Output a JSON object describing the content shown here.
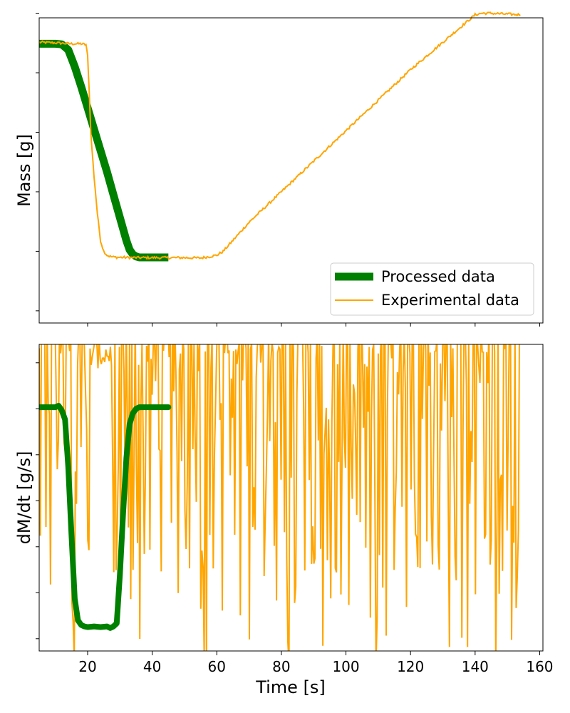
{
  "chart_data": [
    {
      "type": "line",
      "ylabel": "Mass [g]",
      "xlabel": "",
      "xlim": [
        5,
        161
      ],
      "ylim": [
        0,
        1
      ],
      "xticks": [
        20,
        40,
        60,
        80,
        100,
        120,
        140,
        160
      ],
      "yticks_minor": [
        0.04,
        0.235,
        0.43,
        0.625,
        0.82,
        1.015
      ],
      "y_tick_labels": "hidden",
      "x_tick_labels": "hidden",
      "legend": {
        "placement": "bottom-right"
      },
      "series": [
        {
          "name": "Processed data",
          "color": "#008000",
          "linewidth": "thick",
          "x": [
            5,
            10,
            12,
            14,
            16,
            18,
            20,
            22,
            24,
            26,
            28,
            30,
            32,
            33,
            34,
            35,
            36,
            40,
            45
          ],
          "y": [
            0.915,
            0.915,
            0.913,
            0.895,
            0.84,
            0.775,
            0.705,
            0.635,
            0.565,
            0.495,
            0.42,
            0.345,
            0.27,
            0.24,
            0.225,
            0.218,
            0.215,
            0.215,
            0.215
          ]
        },
        {
          "name": "Experimental data",
          "color": "#ffa500",
          "linewidth": "thin",
          "x": [
            5,
            10,
            15,
            18,
            19.5,
            20,
            20.5,
            21,
            22,
            23,
            24,
            25,
            26,
            27,
            28,
            30,
            35,
            40,
            45,
            50,
            55,
            58,
            60,
            62,
            70,
            80,
            90,
            100,
            110,
            120,
            130,
            140,
            142,
            145,
            150,
            154
          ],
          "y": [
            0.92,
            0.918,
            0.915,
            0.915,
            0.912,
            0.875,
            0.76,
            0.62,
            0.48,
            0.36,
            0.27,
            0.235,
            0.222,
            0.218,
            0.216,
            0.215,
            0.214,
            0.214,
            0.214,
            0.214,
            0.213,
            0.218,
            0.222,
            0.235,
            0.33,
            0.43,
            0.53,
            0.63,
            0.73,
            0.83,
            0.92,
            1.01,
            1.015,
            1.015,
            1.012,
            1.01
          ]
        }
      ]
    },
    {
      "type": "line",
      "ylabel": "dM/dt [g/s]",
      "xlabel": "Time [s]",
      "xlim": [
        5,
        161
      ],
      "ylim": [
        0,
        1
      ],
      "xticks": [
        20,
        40,
        60,
        80,
        100,
        120,
        140,
        160
      ],
      "yticks_minor": [
        0.04,
        0.19,
        0.34,
        0.49,
        0.64,
        0.79,
        0.94
      ],
      "y_tick_labels": "hidden",
      "series": [
        {
          "name": "Processed data",
          "color": "#008000",
          "x": [
            5,
            9,
            10,
            11,
            12,
            13,
            14,
            15,
            16,
            17,
            18,
            19,
            20,
            22,
            24,
            26,
            27,
            28,
            29,
            30,
            31,
            32,
            33,
            34,
            35,
            36,
            40,
            45
          ],
          "y": [
            0.795,
            0.795,
            0.795,
            0.8,
            0.785,
            0.755,
            0.6,
            0.38,
            0.17,
            0.1,
            0.085,
            0.08,
            0.078,
            0.08,
            0.078,
            0.08,
            0.075,
            0.08,
            0.09,
            0.25,
            0.45,
            0.63,
            0.74,
            0.775,
            0.79,
            0.795,
            0.795,
            0.795
          ]
        },
        {
          "name": "Experimental data",
          "color": "#ffa500",
          "x_start": 5,
          "x_end": 154,
          "quiet_interval": [
            20.5,
            27.5
          ],
          "style": "noisy"
        }
      ]
    }
  ]
}
